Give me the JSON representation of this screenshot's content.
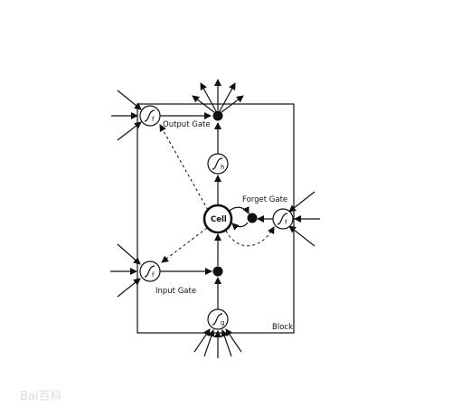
{
  "labels": {
    "block": "Block",
    "cell": "Cell",
    "output_gate": "Output Gate",
    "forget_gate": "Forget Gate",
    "input_gate": "Input Gate"
  },
  "gates": {
    "output": {
      "symbol": "f"
    },
    "forget": {
      "symbol": "f"
    },
    "input": {
      "symbol": "f"
    },
    "cell_output": {
      "symbol": "h"
    },
    "cell_input": {
      "symbol": "g"
    }
  },
  "watermark": "Bai百科",
  "colors": {
    "line": "#111111",
    "background": "#ffffff",
    "watermark": "#dcdcdc"
  }
}
